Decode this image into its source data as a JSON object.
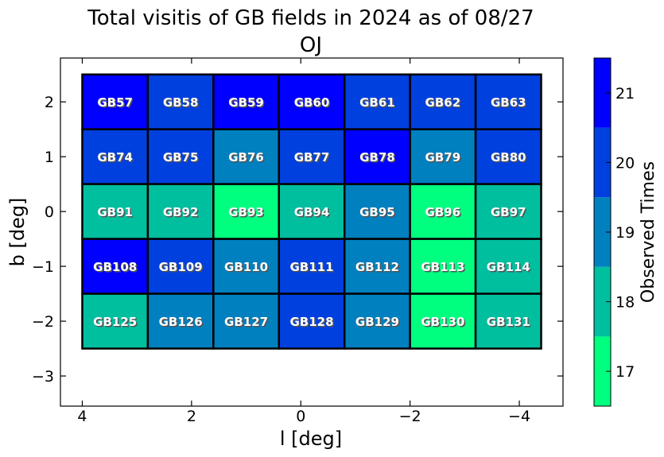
{
  "chart_data": {
    "type": "heatmap",
    "title": "Total visitis of GB fields in 2024 as of 08/27",
    "subtitle": "OJ",
    "xlabel": "l [deg]",
    "ylabel": "b [deg]",
    "xlim": [
      4.4,
      -4.8
    ],
    "ylim": [
      -3.55,
      2.8
    ],
    "xticks": [
      4,
      2,
      0,
      -2,
      -4
    ],
    "xtick_labels": [
      "4",
      "2",
      "0",
      "−2",
      "−4"
    ],
    "yticks": [
      2,
      1,
      0,
      -1,
      -2,
      -3
    ],
    "ytick_labels": [
      "2",
      "1",
      "0",
      "−1",
      "−2",
      "−3"
    ],
    "grid": false,
    "colorbar": {
      "label": "Observed Times",
      "range": [
        16.5,
        21.5
      ],
      "levels": [
        {
          "value": 17,
          "color": "#00ff7f"
        },
        {
          "value": 18,
          "color": "#00bf9f"
        },
        {
          "value": 19,
          "color": "#0080bf"
        },
        {
          "value": 20,
          "color": "#0040df"
        },
        {
          "value": 21,
          "color": "#0000ff"
        }
      ],
      "ticks": [
        17,
        18,
        19,
        20,
        21
      ],
      "tick_labels": [
        "17",
        "18",
        "19",
        "20",
        "21"
      ]
    },
    "columns_l": [
      3.4,
      2.2,
      1.0,
      -0.2,
      -1.4,
      -2.6,
      -3.8
    ],
    "rows_b": [
      2.0,
      1.0,
      0.0,
      -1.0,
      -2.0
    ],
    "cell_width_l": 1.2,
    "cell_height_b": 1.0,
    "fields": [
      [
        "GB57",
        "GB58",
        "GB59",
        "GB60",
        "GB61",
        "GB62",
        "GB63"
      ],
      [
        "GB74",
        "GB75",
        "GB76",
        "GB77",
        "GB78",
        "GB79",
        "GB80"
      ],
      [
        "GB91",
        "GB92",
        "GB93",
        "GB94",
        "GB95",
        "GB96",
        "GB97"
      ],
      [
        "GB108",
        "GB109",
        "GB110",
        "GB111",
        "GB112",
        "GB113",
        "GB114"
      ],
      [
        "GB125",
        "GB126",
        "GB127",
        "GB128",
        "GB129",
        "GB130",
        "GB131"
      ]
    ],
    "values": [
      [
        21,
        20,
        21,
        21,
        20,
        20,
        20
      ],
      [
        20,
        20,
        19,
        20,
        21,
        19,
        20
      ],
      [
        18,
        18,
        17,
        18,
        19,
        17,
        18
      ],
      [
        21,
        20,
        19,
        20,
        19,
        17,
        18
      ],
      [
        18,
        19,
        19,
        20,
        19,
        17,
        18
      ]
    ]
  }
}
